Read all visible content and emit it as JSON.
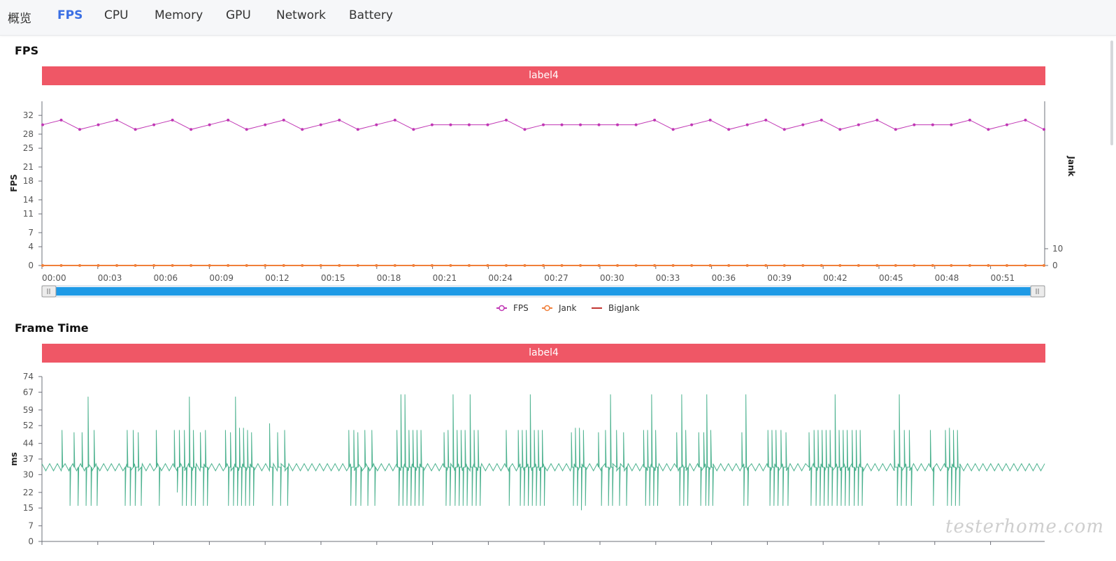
{
  "tabs": [
    {
      "label": "概览",
      "active": false
    },
    {
      "label": "FPS",
      "active": true
    },
    {
      "label": "CPU",
      "active": false
    },
    {
      "label": "Memory",
      "active": false
    },
    {
      "label": "GPU",
      "active": false
    },
    {
      "label": "Network",
      "active": false
    },
    {
      "label": "Battery",
      "active": false
    }
  ],
  "fps_section": {
    "title": "FPS",
    "label_bar": "label4"
  },
  "frametime_section": {
    "title": "Frame Time",
    "label_bar": "label4"
  },
  "legend": [
    {
      "name": "FPS",
      "color": "#c036b4",
      "marker": "circle-line"
    },
    {
      "name": "Jank",
      "color": "#f07f3a",
      "marker": "circle-line"
    },
    {
      "name": "BigJank",
      "color": "#c23531",
      "marker": "line"
    }
  ],
  "watermark": "testerhome.com",
  "chart_data": [
    {
      "type": "line",
      "title": "FPS",
      "ylabel": "FPS",
      "ylabel_right": "Jank",
      "yticks": [
        "0",
        "4",
        "7",
        "11",
        "14",
        "18",
        "21",
        "25",
        "28",
        "32"
      ],
      "yticks_right": [
        "0",
        "10"
      ],
      "ylim": [
        0,
        35
      ],
      "x_tick_labels": [
        "00:00",
        "00:03",
        "00:06",
        "00:09",
        "00:12",
        "00:15",
        "00:18",
        "00:21",
        "00:24",
        "00:27",
        "00:30",
        "00:33",
        "00:36",
        "00:39",
        "00:42",
        "00:45",
        "00:48",
        "00:51"
      ],
      "series": [
        {
          "name": "FPS",
          "color": "#c036b4",
          "values": [
            30,
            31,
            29,
            30,
            31,
            29,
            30,
            31,
            29,
            30,
            31,
            29,
            30,
            31,
            29,
            30,
            31,
            29,
            30,
            31,
            29,
            30,
            30,
            30,
            30,
            31,
            29,
            30,
            30,
            30,
            30,
            30,
            30,
            31,
            29,
            30,
            31,
            29,
            30,
            31,
            29,
            30,
            31,
            29,
            30,
            31,
            29,
            30,
            30,
            30,
            31,
            29,
            30,
            31,
            29
          ]
        },
        {
          "name": "Jank",
          "color": "#f07f3a",
          "values": [
            0,
            0,
            0,
            0,
            0,
            0,
            0,
            0,
            0,
            0,
            0,
            0,
            0,
            0,
            0,
            0,
            0,
            0,
            0,
            0,
            0,
            0,
            0,
            0,
            0,
            0,
            0,
            0,
            0,
            0,
            0,
            0,
            0,
            0,
            0,
            0,
            0,
            0,
            0,
            0,
            0,
            0,
            0,
            0,
            0,
            0,
            0,
            0,
            0,
            0,
            0,
            0,
            0,
            0,
            0
          ]
        },
        {
          "name": "BigJank",
          "color": "#c23531",
          "values": [
            0,
            0,
            0,
            0,
            0,
            0,
            0,
            0,
            0,
            0,
            0,
            0,
            0,
            0,
            0,
            0,
            0,
            0,
            0,
            0,
            0,
            0,
            0,
            0,
            0,
            0,
            0,
            0,
            0,
            0,
            0,
            0,
            0,
            0,
            0,
            0,
            0,
            0,
            0,
            0,
            0,
            0,
            0,
            0,
            0,
            0,
            0,
            0,
            0,
            0,
            0,
            0,
            0,
            0,
            0
          ]
        }
      ]
    },
    {
      "type": "line",
      "title": "Frame Time",
      "ylabel": "ms",
      "yticks": [
        "0",
        "7",
        "15",
        "22",
        "30",
        "37",
        "44",
        "52",
        "59",
        "67",
        "74"
      ],
      "ylim": [
        0,
        74
      ],
      "series": [
        {
          "name": "Frame Time",
          "color": "#4db28f",
          "baseline": 33.3,
          "spikes": [
            [
              0.02,
              50
            ],
            [
              0.028,
              16
            ],
            [
              0.032,
              49
            ],
            [
              0.036,
              16
            ],
            [
              0.04,
              49
            ],
            [
              0.044,
              16
            ],
            [
              0.046,
              65
            ],
            [
              0.049,
              16
            ],
            [
              0.052,
              50
            ],
            [
              0.055,
              16
            ],
            [
              0.083,
              16
            ],
            [
              0.085,
              50
            ],
            [
              0.088,
              16
            ],
            [
              0.091,
              50
            ],
            [
              0.093,
              16
            ],
            [
              0.096,
              49
            ],
            [
              0.099,
              16
            ],
            [
              0.114,
              50
            ],
            [
              0.117,
              16
            ],
            [
              0.132,
              50
            ],
            [
              0.135,
              22
            ],
            [
              0.137,
              50
            ],
            [
              0.14,
              16
            ],
            [
              0.142,
              50
            ],
            [
              0.144,
              16
            ],
            [
              0.147,
              65
            ],
            [
              0.149,
              16
            ],
            [
              0.151,
              50
            ],
            [
              0.153,
              16
            ],
            [
              0.158,
              49
            ],
            [
              0.161,
              16
            ],
            [
              0.163,
              50
            ],
            [
              0.165,
              16
            ],
            [
              0.183,
              50
            ],
            [
              0.186,
              16
            ],
            [
              0.188,
              49
            ],
            [
              0.191,
              16
            ],
            [
              0.193,
              65
            ],
            [
              0.195,
              16
            ],
            [
              0.197,
              51
            ],
            [
              0.199,
              16
            ],
            [
              0.201,
              51
            ],
            [
              0.203,
              16
            ],
            [
              0.205,
              50
            ],
            [
              0.207,
              16
            ],
            [
              0.209,
              49
            ],
            [
              0.211,
              16
            ],
            [
              0.227,
              53
            ],
            [
              0.23,
              16
            ],
            [
              0.235,
              49
            ],
            [
              0.238,
              16
            ],
            [
              0.242,
              50
            ],
            [
              0.245,
              16
            ],
            [
              0.306,
              50
            ],
            [
              0.308,
              16
            ],
            [
              0.311,
              50
            ],
            [
              0.313,
              16
            ],
            [
              0.315,
              49
            ],
            [
              0.318,
              16
            ],
            [
              0.322,
              50
            ],
            [
              0.325,
              16
            ],
            [
              0.329,
              50
            ],
            [
              0.332,
              16
            ],
            [
              0.354,
              50
            ],
            [
              0.356,
              16
            ],
            [
              0.358,
              66
            ],
            [
              0.36,
              16
            ],
            [
              0.362,
              66
            ],
            [
              0.364,
              16
            ],
            [
              0.366,
              50
            ],
            [
              0.368,
              16
            ],
            [
              0.37,
              50
            ],
            [
              0.372,
              16
            ],
            [
              0.374,
              50
            ],
            [
              0.376,
              16
            ],
            [
              0.378,
              50
            ],
            [
              0.38,
              16
            ],
            [
              0.401,
              49
            ],
            [
              0.403,
              16
            ],
            [
              0.405,
              50
            ],
            [
              0.407,
              16
            ],
            [
              0.41,
              66
            ],
            [
              0.412,
              16
            ],
            [
              0.414,
              50
            ],
            [
              0.416,
              16
            ],
            [
              0.418,
              50
            ],
            [
              0.42,
              16
            ],
            [
              0.422,
              50
            ],
            [
              0.424,
              16
            ],
            [
              0.427,
              66
            ],
            [
              0.429,
              16
            ],
            [
              0.431,
              50
            ],
            [
              0.433,
              16
            ],
            [
              0.435,
              50
            ],
            [
              0.437,
              16
            ],
            [
              0.463,
              50
            ],
            [
              0.466,
              16
            ],
            [
              0.475,
              50
            ],
            [
              0.477,
              16
            ],
            [
              0.479,
              50
            ],
            [
              0.481,
              16
            ],
            [
              0.483,
              50
            ],
            [
              0.485,
              16
            ],
            [
              0.487,
              66
            ],
            [
              0.489,
              16
            ],
            [
              0.491,
              50
            ],
            [
              0.493,
              16
            ],
            [
              0.495,
              50
            ],
            [
              0.497,
              16
            ],
            [
              0.499,
              50
            ],
            [
              0.501,
              16
            ],
            [
              0.528,
              49
            ],
            [
              0.53,
              16
            ],
            [
              0.532,
              51
            ],
            [
              0.534,
              16
            ],
            [
              0.536,
              51
            ],
            [
              0.538,
              14
            ],
            [
              0.54,
              50
            ],
            [
              0.542,
              16
            ],
            [
              0.555,
              49
            ],
            [
              0.558,
              16
            ],
            [
              0.562,
              50
            ],
            [
              0.565,
              16
            ],
            [
              0.567,
              66
            ],
            [
              0.569,
              16
            ],
            [
              0.573,
              50
            ],
            [
              0.576,
              16
            ],
            [
              0.58,
              49
            ],
            [
              0.583,
              16
            ],
            [
              0.6,
              50
            ],
            [
              0.602,
              16
            ],
            [
              0.604,
              50
            ],
            [
              0.606,
              16
            ],
            [
              0.608,
              66
            ],
            [
              0.61,
              16
            ],
            [
              0.612,
              50
            ],
            [
              0.614,
              16
            ],
            [
              0.633,
              49
            ],
            [
              0.636,
              16
            ],
            [
              0.638,
              66
            ],
            [
              0.64,
              16
            ],
            [
              0.642,
              50
            ],
            [
              0.644,
              16
            ],
            [
              0.655,
              49
            ],
            [
              0.657,
              16
            ],
            [
              0.66,
              49
            ],
            [
              0.662,
              16
            ],
            [
              0.663,
              66
            ],
            [
              0.665,
              16
            ],
            [
              0.667,
              50
            ],
            [
              0.669,
              16
            ],
            [
              0.698,
              49
            ],
            [
              0.7,
              16
            ],
            [
              0.702,
              66
            ],
            [
              0.704,
              16
            ],
            [
              0.724,
              50
            ],
            [
              0.726,
              16
            ],
            [
              0.728,
              50
            ],
            [
              0.73,
              16
            ],
            [
              0.732,
              50
            ],
            [
              0.734,
              16
            ],
            [
              0.737,
              50
            ],
            [
              0.739,
              16
            ],
            [
              0.742,
              49
            ],
            [
              0.744,
              16
            ],
            [
              0.765,
              49
            ],
            [
              0.767,
              16
            ],
            [
              0.77,
              50
            ],
            [
              0.772,
              16
            ],
            [
              0.774,
              50
            ],
            [
              0.776,
              16
            ],
            [
              0.778,
              50
            ],
            [
              0.78,
              16
            ],
            [
              0.782,
              50
            ],
            [
              0.784,
              16
            ],
            [
              0.786,
              50
            ],
            [
              0.788,
              16
            ],
            [
              0.791,
              66
            ],
            [
              0.793,
              16
            ],
            [
              0.795,
              50
            ],
            [
              0.797,
              16
            ],
            [
              0.799,
              50
            ],
            [
              0.801,
              16
            ],
            [
              0.803,
              50
            ],
            [
              0.805,
              16
            ],
            [
              0.808,
              50
            ],
            [
              0.81,
              16
            ],
            [
              0.812,
              50
            ],
            [
              0.814,
              16
            ],
            [
              0.816,
              50
            ],
            [
              0.818,
              16
            ],
            [
              0.85,
              50
            ],
            [
              0.853,
              16
            ],
            [
              0.855,
              66
            ],
            [
              0.857,
              16
            ],
            [
              0.86,
              50
            ],
            [
              0.862,
              16
            ],
            [
              0.865,
              50
            ],
            [
              0.867,
              16
            ],
            [
              0.886,
              50
            ],
            [
              0.889,
              16
            ],
            [
              0.901,
              50
            ],
            [
              0.903,
              16
            ],
            [
              0.905,
              51
            ],
            [
              0.907,
              16
            ],
            [
              0.909,
              50
            ],
            [
              0.911,
              16
            ],
            [
              0.913,
              50
            ],
            [
              0.915,
              16
            ]
          ]
        }
      ]
    }
  ]
}
